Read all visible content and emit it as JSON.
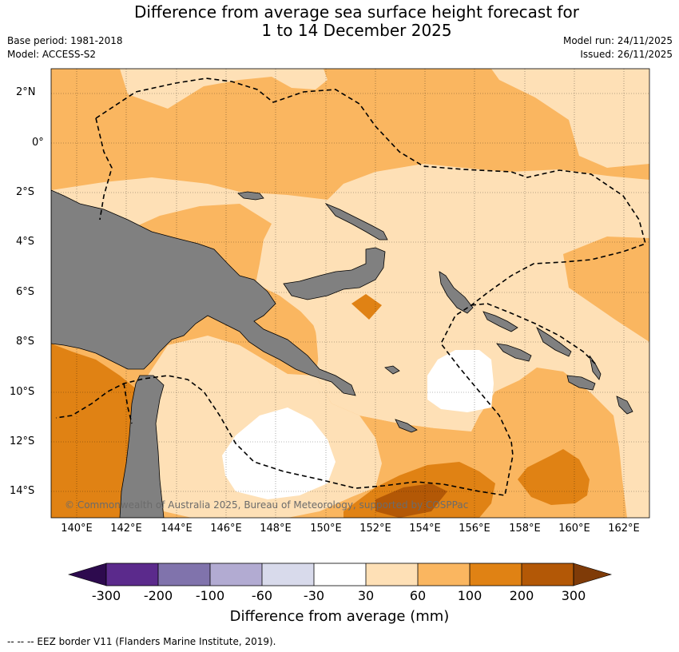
{
  "header": {
    "title_line1": "Difference from average sea surface height forecast for",
    "title_line2": "1 to 14 December 2025",
    "base_period": "Base period: 1981-2018",
    "model": "Model: ACCESS-S2",
    "model_run": "Model run: 24/11/2025",
    "issued": "Issued: 26/11/2025"
  },
  "map": {
    "lat_labels": [
      "2°N",
      "0°",
      "2°S",
      "4°S",
      "6°S",
      "8°S",
      "10°S",
      "12°S",
      "14°S"
    ],
    "lon_labels": [
      "140°E",
      "142°E",
      "144°E",
      "146°E",
      "148°E",
      "150°E",
      "152°E",
      "154°E",
      "156°E",
      "158°E",
      "160°E",
      "162°E"
    ],
    "copyright": "© Commonwealth of Australia 2025, Bureau of Meteorology, supported by COSPPac",
    "land_color": "#808080"
  },
  "colorbar": {
    "title": "Difference from average (mm)",
    "ticks": [
      "-300",
      "-200",
      "-100",
      "-60",
      "-30",
      "30",
      "60",
      "100",
      "200",
      "300"
    ],
    "colors": {
      "below": "#2d0a4e",
      "c1": "#5b2a8c",
      "c2": "#8073ac",
      "c3": "#b2abd2",
      "c4": "#d8daeb",
      "c5": "#ffffff",
      "c6": "#fee0b6",
      "c7": "#fab660",
      "c8": "#e08214",
      "c9": "#b35806",
      "above": "#7f3b08"
    }
  },
  "footer": {
    "legend_note": "--  --  -- EEZ border V11 (Flanders Marine Institute, 2019)."
  }
}
